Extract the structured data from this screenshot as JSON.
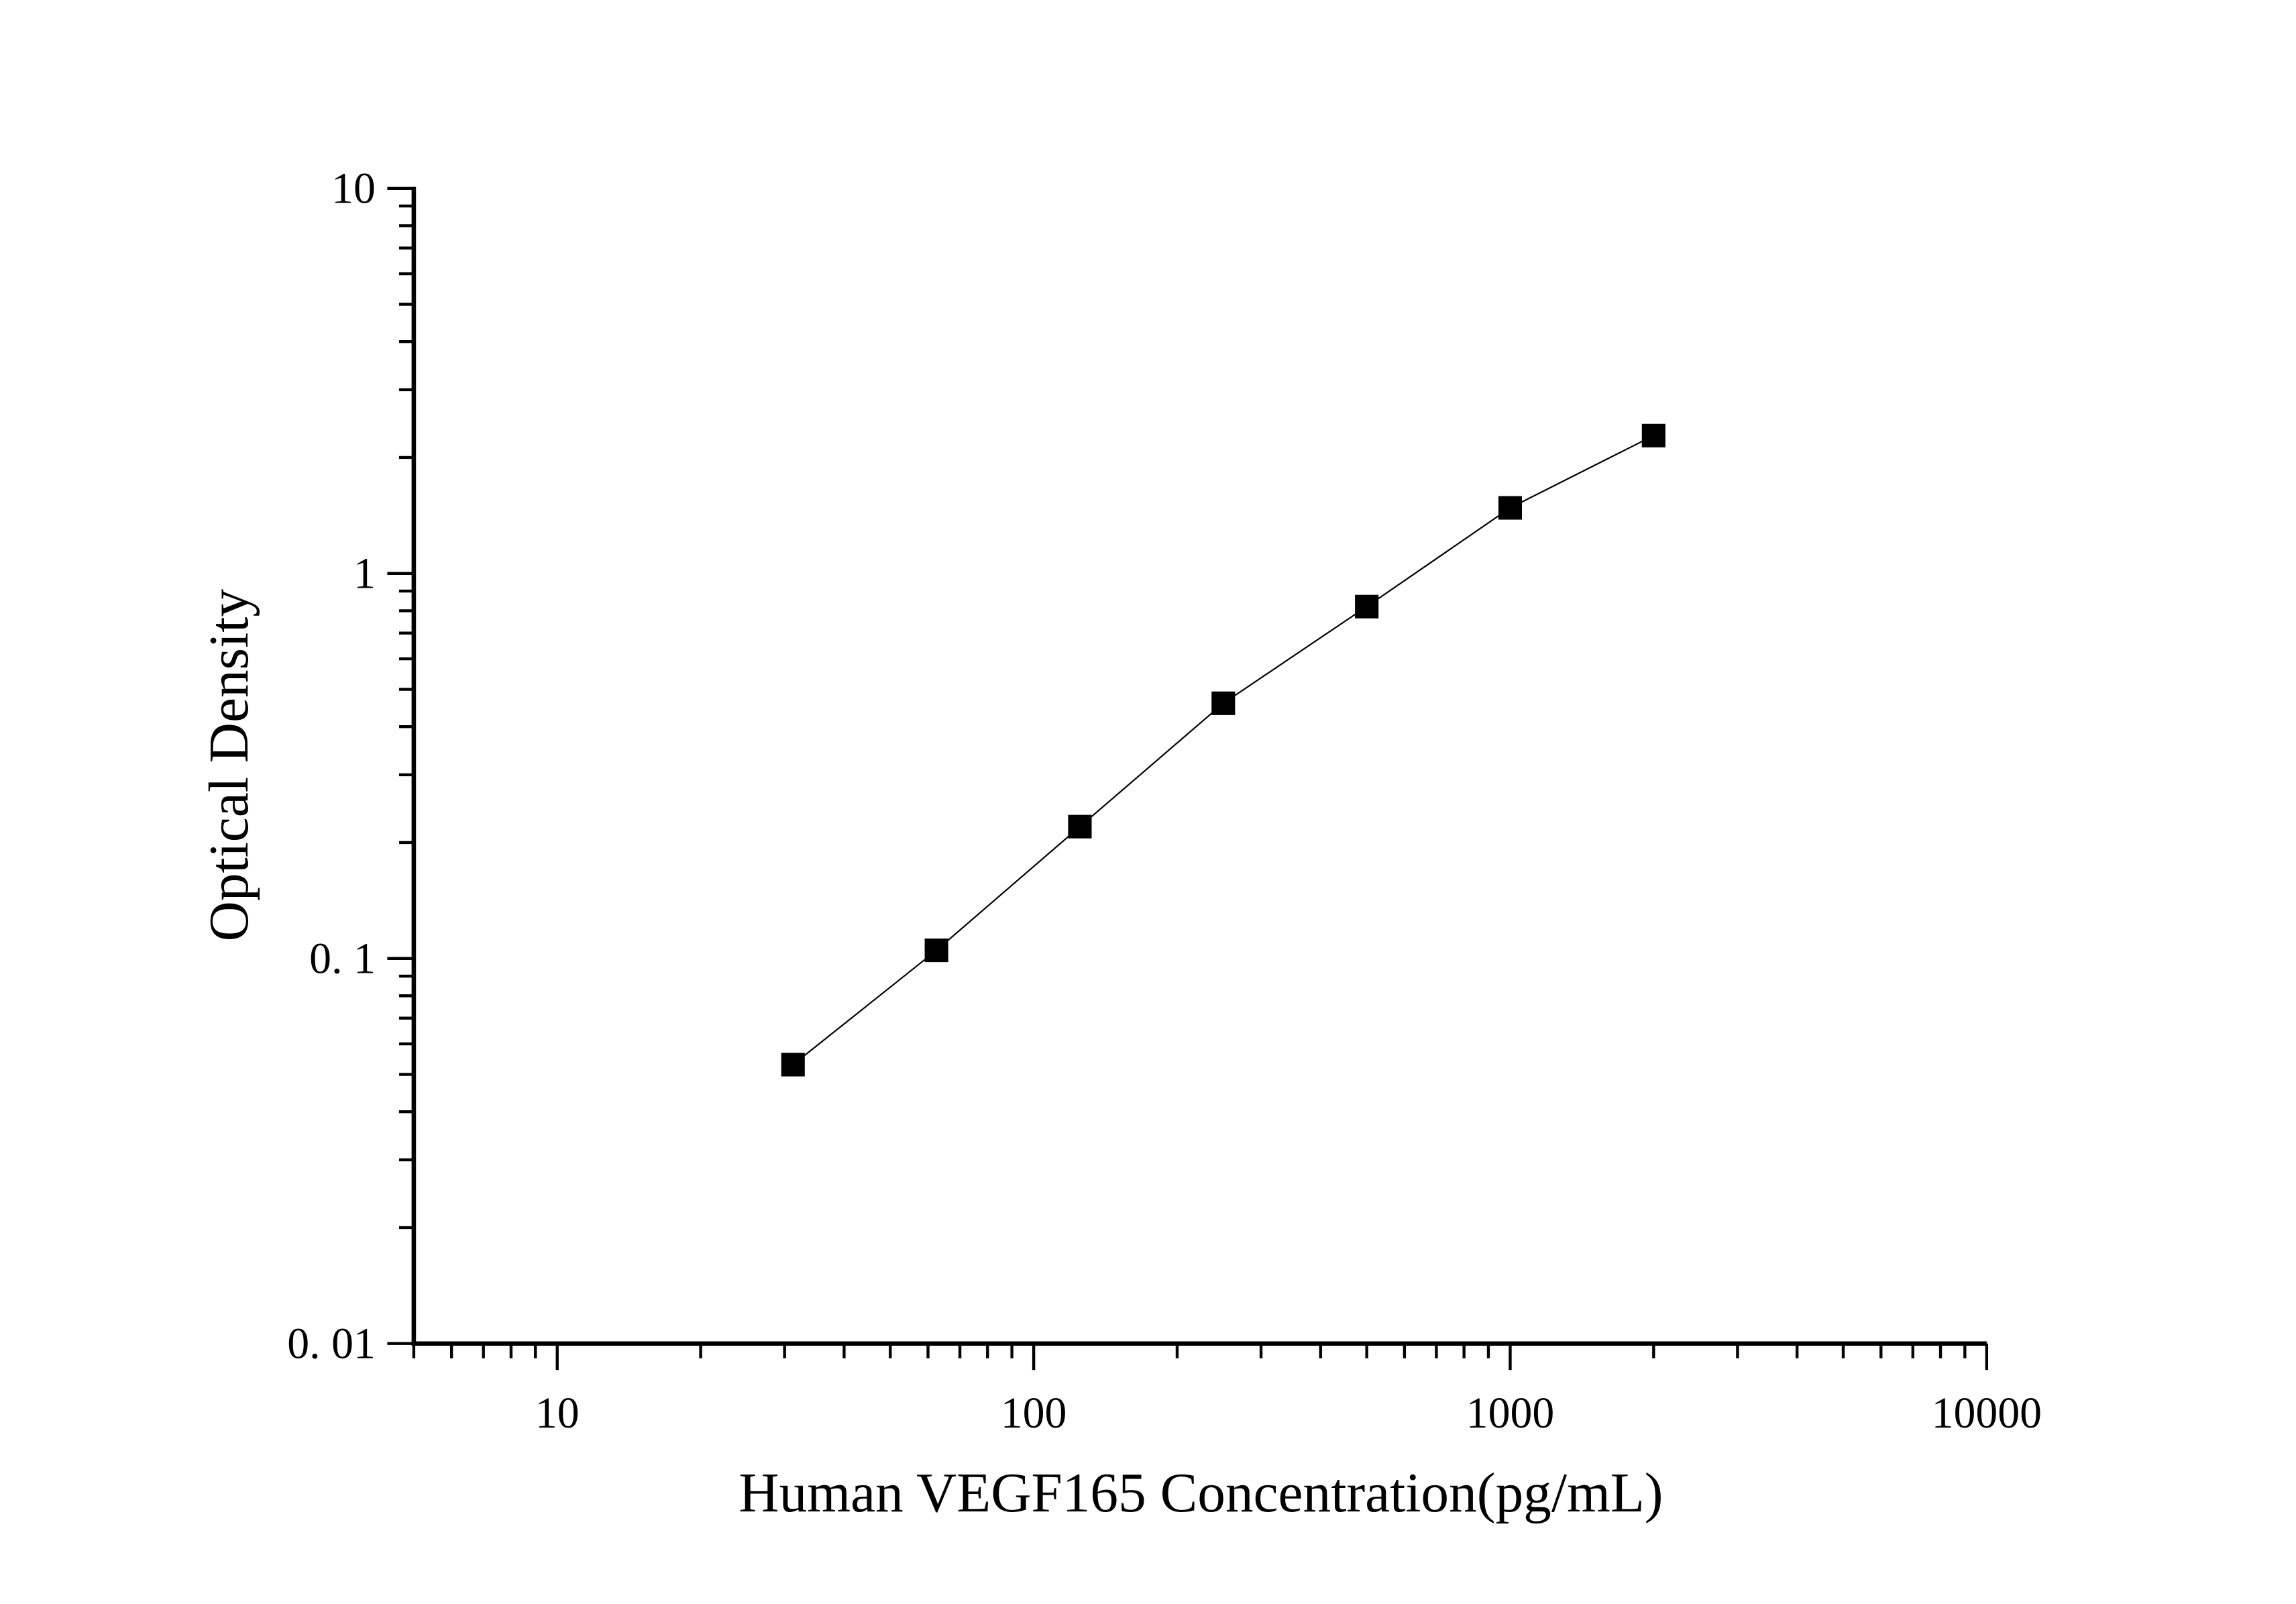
{
  "chart_data": {
    "type": "line",
    "title": "",
    "xlabel": "Human VEGF165 Concentration(pg/mL)",
    "ylabel": "Optical Density",
    "x_scale": "log",
    "y_scale": "log",
    "xlim": [
      5,
      10000
    ],
    "ylim": [
      0.01,
      10
    ],
    "x_ticks": [
      10,
      100,
      1000,
      10000
    ],
    "x_tick_labels": [
      "10",
      "100",
      "1000",
      "10000"
    ],
    "y_ticks": [
      0.01,
      0.1,
      1,
      10
    ],
    "y_tick_labels": [
      "0. 01",
      "0. 1",
      "1",
      "10"
    ],
    "grid": false,
    "marker": "square",
    "colors": {
      "series": "#000000"
    },
    "series": [
      {
        "x": [
          31.25,
          62.5,
          125,
          250,
          500,
          1000,
          2000
        ],
        "y": [
          0.053,
          0.105,
          0.22,
          0.46,
          0.82,
          1.48,
          2.28
        ]
      }
    ]
  }
}
